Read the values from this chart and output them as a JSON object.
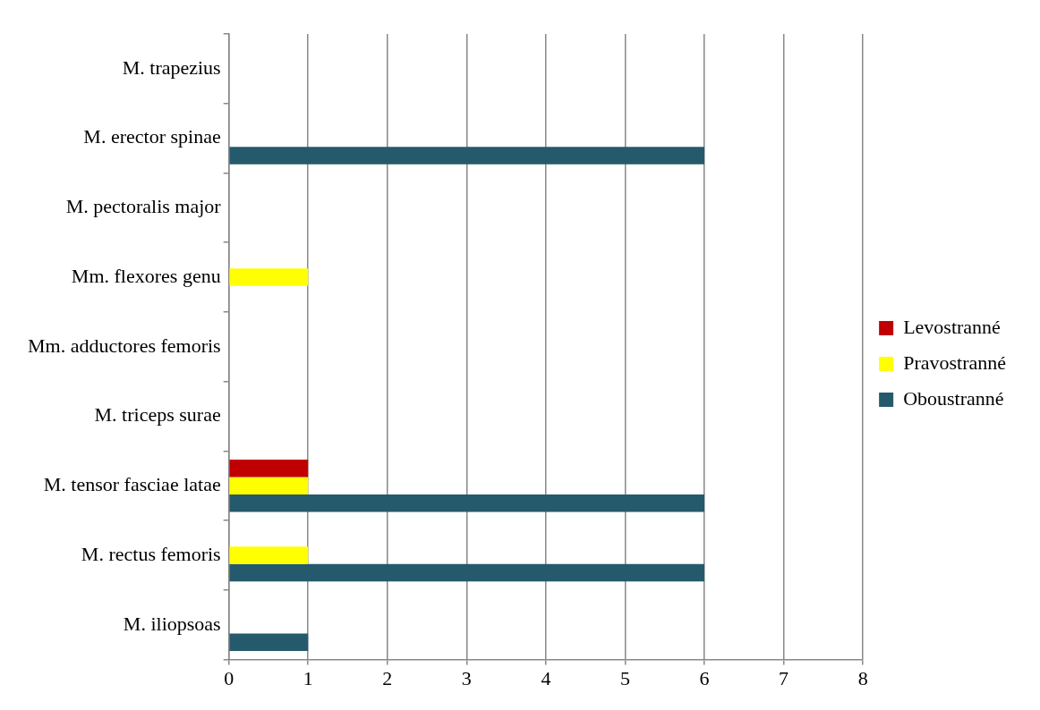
{
  "chart_data": {
    "type": "bar",
    "orientation": "horizontal",
    "categories": [
      "M. trapezius",
      "M. erector spinae",
      "M. pectoralis major",
      "Mm. flexores genu",
      "Mm. adductores femoris",
      "M. triceps surae",
      "M. tensor fasciae latae",
      "M. rectus femoris",
      "M. iliopsoas"
    ],
    "series": [
      {
        "name": "Levostranné",
        "color": "#c00000",
        "values": [
          0,
          0,
          0,
          0,
          0,
          0,
          1,
          0,
          0
        ]
      },
      {
        "name": "Pravostranné",
        "color": "#ffff00",
        "values": [
          0,
          0,
          0,
          1,
          0,
          0,
          1,
          1,
          0
        ]
      },
      {
        "name": "Oboustranné",
        "color": "#245a6b",
        "values": [
          0,
          6,
          0,
          0,
          0,
          0,
          6,
          6,
          1
        ]
      }
    ],
    "xlim": [
      0,
      8
    ],
    "xticks": [
      0,
      1,
      2,
      3,
      4,
      5,
      6,
      7,
      8
    ],
    "grid": "x",
    "legend": "right"
  }
}
